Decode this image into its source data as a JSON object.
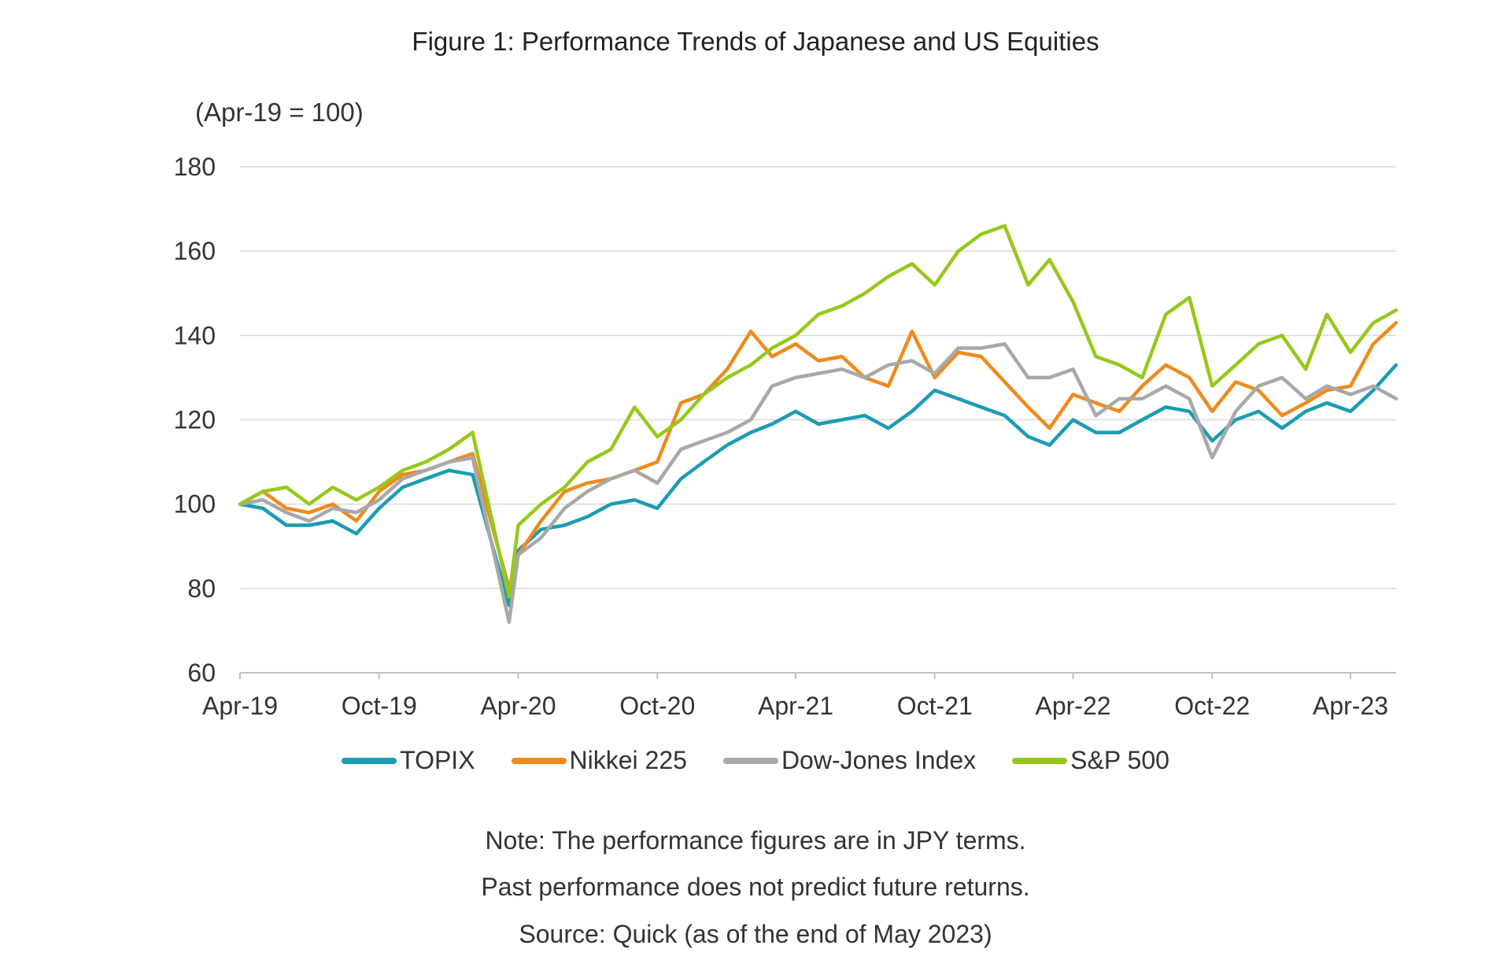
{
  "chart_data": {
    "type": "line",
    "title": "Figure 1: Performance Trends of Japanese and US Equities",
    "ylabel": "(Apr-19 = 100)",
    "xlabel": "",
    "ylim": [
      60,
      180
    ],
    "yticks": [
      "60",
      "80",
      "100",
      "120",
      "140",
      "160",
      "180"
    ],
    "xticks": [
      {
        "label": "Apr-19",
        "date": "2019-04-01"
      },
      {
        "label": "Oct-19",
        "date": "2019-10-01"
      },
      {
        "label": "Apr-20",
        "date": "2020-04-01"
      },
      {
        "label": "Oct-20",
        "date": "2020-10-01"
      },
      {
        "label": "Apr-21",
        "date": "2021-04-01"
      },
      {
        "label": "Oct-21",
        "date": "2021-10-01"
      },
      {
        "label": "Apr-22",
        "date": "2022-04-01"
      },
      {
        "label": "Oct-22",
        "date": "2022-10-01"
      },
      {
        "label": "Apr-23",
        "date": "2023-04-01"
      }
    ],
    "xlim": [
      "2019-04-01",
      "2023-05-31"
    ],
    "grid": "horizontal",
    "legend": "bottom",
    "x": [
      "2019-04-01",
      "2019-05-01",
      "2019-06-01",
      "2019-07-01",
      "2019-08-01",
      "2019-09-01",
      "2019-10-01",
      "2019-11-01",
      "2019-12-01",
      "2020-01-01",
      "2020-02-01",
      "2020-03-20",
      "2020-04-01",
      "2020-05-01",
      "2020-06-01",
      "2020-07-01",
      "2020-08-01",
      "2020-09-01",
      "2020-10-01",
      "2020-11-01",
      "2020-12-01",
      "2021-01-01",
      "2021-02-01",
      "2021-03-01",
      "2021-04-01",
      "2021-05-01",
      "2021-06-01",
      "2021-07-01",
      "2021-08-01",
      "2021-09-01",
      "2021-10-01",
      "2021-11-01",
      "2021-12-01",
      "2022-01-01",
      "2022-02-01",
      "2022-03-01",
      "2022-04-01",
      "2022-05-01",
      "2022-06-01",
      "2022-07-01",
      "2022-08-01",
      "2022-09-01",
      "2022-10-01",
      "2022-11-01",
      "2022-12-01",
      "2023-01-01",
      "2023-02-01",
      "2023-03-01",
      "2023-04-01",
      "2023-05-01",
      "2023-05-31"
    ],
    "series": [
      {
        "name": "TOPIX",
        "color": "#1a9cb3",
        "values": [
          100,
          99,
          95,
          95,
          96,
          93,
          99,
          104,
          106,
          108,
          107,
          76,
          89,
          94,
          95,
          97,
          100,
          101,
          99,
          106,
          110,
          114,
          117,
          119,
          122,
          119,
          120,
          121,
          118,
          122,
          127,
          125,
          123,
          121,
          116,
          114,
          120,
          117,
          117,
          120,
          123,
          122,
          115,
          120,
          122,
          118,
          122,
          124,
          122,
          127,
          133
        ]
      },
      {
        "name": "Nikkei 225",
        "color": "#ef8a1c",
        "values": [
          100,
          103,
          99,
          98,
          100,
          96,
          103,
          107,
          108,
          110,
          112,
          80,
          88,
          96,
          103,
          105,
          106,
          108,
          110,
          124,
          126,
          132,
          141,
          135,
          138,
          134,
          135,
          130,
          128,
          141,
          130,
          136,
          135,
          129,
          123,
          118,
          126,
          124,
          122,
          128,
          133,
          130,
          122,
          129,
          127,
          121,
          124,
          127,
          128,
          138,
          143
        ]
      },
      {
        "name": "Dow-Jones Index",
        "color": "#a8a8a8",
        "values": [
          100,
          101,
          98,
          96,
          99,
          98,
          101,
          106,
          108,
          110,
          111,
          72,
          88,
          92,
          99,
          103,
          106,
          108,
          105,
          113,
          115,
          117,
          120,
          128,
          130,
          131,
          132,
          130,
          133,
          134,
          131,
          137,
          137,
          138,
          130,
          130,
          132,
          121,
          125,
          125,
          128,
          125,
          111,
          122,
          128,
          130,
          125,
          128,
          126,
          128,
          125
        ]
      },
      {
        "name": "S&P 500",
        "color": "#96c81c",
        "values": [
          100,
          103,
          104,
          100,
          104,
          101,
          104,
          108,
          110,
          113,
          117,
          78,
          95,
          100,
          104,
          110,
          113,
          123,
          116,
          120,
          126,
          130,
          133,
          137,
          140,
          145,
          147,
          150,
          154,
          157,
          152,
          160,
          164,
          166,
          152,
          158,
          148,
          135,
          133,
          130,
          145,
          149,
          128,
          133,
          138,
          140,
          132,
          145,
          136,
          143,
          146
        ]
      }
    ]
  },
  "notes": [
    "Note: The performance figures are in JPY terms.",
    "Past performance does not predict future returns.",
    "Source: Quick (as of the end of May 2023)"
  ]
}
